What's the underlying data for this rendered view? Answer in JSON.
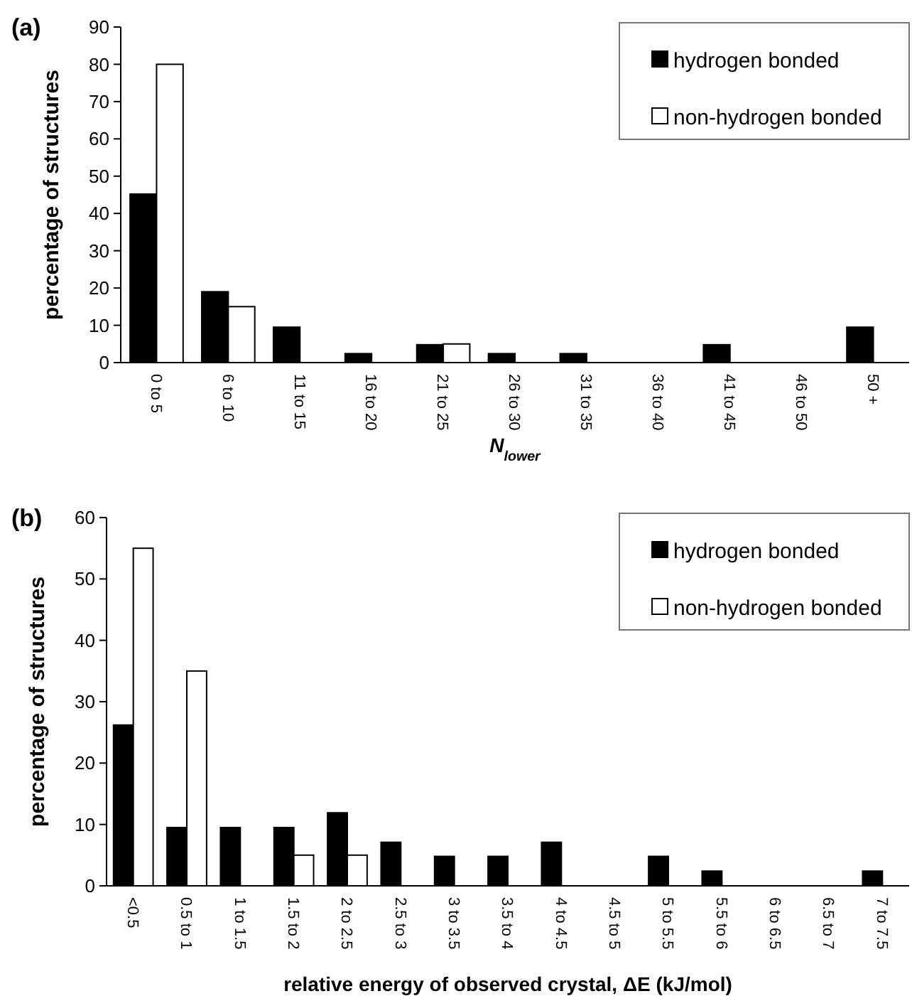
{
  "chart_data": [
    {
      "type": "bar",
      "title": "(a)",
      "xlabel": "N$_{lower}$",
      "ylabel": "percentage of structures",
      "categories": [
        "0 to 5",
        "6 to 10",
        "11 to 15",
        "16 to 20",
        "21 to 25",
        "26 to 30",
        "31 to 35",
        "36 to 40",
        "41 to 45",
        "46 to 50",
        "50 +"
      ],
      "series": [
        {
          "name": "hydrogen bonded",
          "color": "#000000",
          "values": [
            45.2,
            19,
            9.5,
            2.4,
            4.8,
            2.4,
            2.4,
            0,
            4.8,
            0,
            9.5
          ]
        },
        {
          "name": "non-hydrogen bonded",
          "color": "#ffffff",
          "values": [
            80,
            15,
            0,
            0,
            5,
            0,
            0,
            0,
            0,
            0,
            0
          ]
        }
      ],
      "ylim": [
        0,
        90
      ],
      "yticks": [
        0,
        10,
        20,
        30,
        40,
        50,
        60,
        70,
        80,
        90
      ],
      "grid": false,
      "legend": "top right"
    },
    {
      "type": "bar",
      "title": "(b)",
      "xlabel": "relative energy of observed crystal, ΔE (kJ/mol)",
      "ylabel": "percentage of structures",
      "categories": [
        "<0.5",
        "0.5 to 1",
        "1 to 1.5",
        "1.5 to 2",
        "2 to 2.5",
        "2.5 to 3",
        "3 to 3.5",
        "3.5 to 4",
        "4 to 4.5",
        "4.5 to 5",
        "5 to 5.5",
        "5.5 to 6",
        "6 to 6.5",
        "6.5 to 7",
        "7 to 7.5"
      ],
      "series": [
        {
          "name": "hydrogen bonded",
          "color": "#000000",
          "values": [
            26.2,
            9.5,
            9.5,
            9.5,
            11.9,
            7.1,
            4.8,
            4.8,
            7.1,
            0,
            4.8,
            2.4,
            0,
            0,
            2.4
          ]
        },
        {
          "name": "non-hydrogen bonded",
          "color": "#ffffff",
          "values": [
            55,
            35,
            0,
            5,
            5,
            0,
            0,
            0,
            0,
            0,
            0,
            0,
            0,
            0,
            0
          ]
        }
      ],
      "ylim": [
        0,
        60
      ],
      "yticks": [
        0,
        10,
        20,
        30,
        40,
        50,
        60
      ],
      "grid": false,
      "legend": "top right"
    }
  ]
}
